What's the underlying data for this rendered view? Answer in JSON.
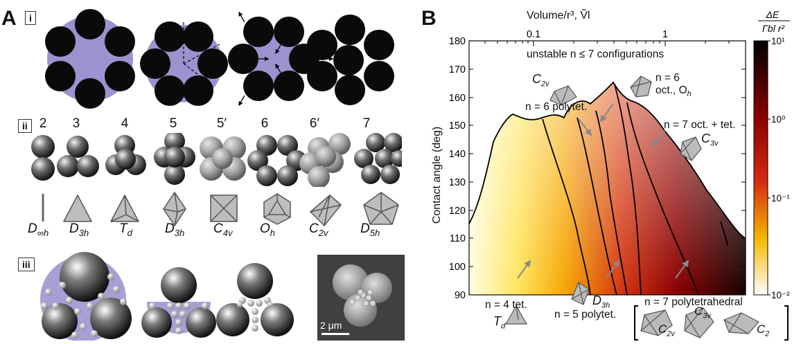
{
  "panels": {
    "A": "A",
    "B": "B",
    "sub_i": "i",
    "sub_ii": "ii",
    "sub_iii": "iii"
  },
  "clusters": {
    "numbers": [
      "2",
      "3",
      "4",
      "5",
      "5′",
      "6",
      "6′",
      "7"
    ],
    "symmetries": [
      {
        "main": "D",
        "sub": "∞h"
      },
      {
        "main": "D",
        "sub": "3h"
      },
      {
        "main": "T",
        "sub": "d"
      },
      {
        "main": "D",
        "sub": "3h"
      },
      {
        "main": "C",
        "sub": "4v"
      },
      {
        "main": "O",
        "sub": "h"
      },
      {
        "main": "C",
        "sub": "2v"
      },
      {
        "main": "D",
        "sub": "5h"
      }
    ]
  },
  "micrograph": {
    "scale_bar": "2 μm"
  },
  "chart_data": {
    "type": "heatmap",
    "xlabel": "Volume/r³, Ṽl",
    "ylabel": "Contact angle (deg)",
    "x_scale": "log",
    "x_ticks": [
      "0.1",
      "1"
    ],
    "ylim": [
      90,
      180
    ],
    "y_ticks": [
      "90",
      "100",
      "110",
      "120",
      "130",
      "140",
      "150",
      "160",
      "170",
      "180"
    ],
    "colorbar": {
      "label_numerator": "ΔE",
      "label_denominator": "Γbl r²",
      "scale": "log",
      "ticks": [
        "10¹",
        "10⁰",
        "10⁻¹",
        "10⁻²"
      ],
      "colors": [
        "#000000",
        "#8a0000",
        "#d42a10",
        "#f5b800",
        "#ffffff"
      ]
    },
    "annotations": {
      "unstable": "unstable n ≤ 7 configurations",
      "n6_oct_a": "n = 6",
      "n6_oct_b": "oct., O",
      "n6_oct_sub": "h",
      "c2v_main": "C",
      "c2v_sub": "2v",
      "n6_polytet": "n = 6 polytet.",
      "n7_octtet": "n = 7 oct. + tet.",
      "c3v_main": "C",
      "c3v_sub": "3v",
      "n4_tet": "n = 4 tet.",
      "td_main": "T",
      "td_sub": "d",
      "d3h_main": "D",
      "d3h_sub": "3h",
      "n5_polytet": "n = 5 polytet.",
      "n7_polytet": "n = 7 polytetrahedral",
      "c2v_b_main": "C",
      "c2v_b_sub": "2v",
      "c3v_b_main": "C",
      "c3v_b_sub": "3v",
      "c2_main": "C",
      "c2_sub": "2"
    }
  }
}
